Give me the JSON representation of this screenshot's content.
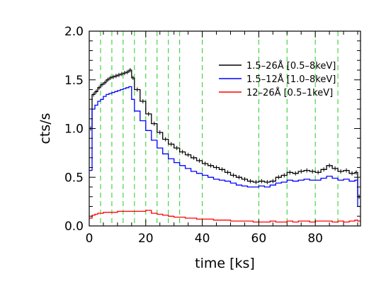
{
  "chart_data": {
    "type": "line",
    "xlabel": "time [ks]",
    "ylabel": "cts/s",
    "xlim": [
      0,
      96
    ],
    "ylim": [
      0,
      2.0
    ],
    "xticks": [
      "0",
      "20",
      "40",
      "60",
      "80"
    ],
    "xtick_values": [
      0,
      20,
      40,
      60,
      80
    ],
    "yticks": [
      "0.0",
      "0.5",
      "1.0",
      "1.5",
      "2.0"
    ],
    "ytick_values": [
      0,
      0.5,
      1.0,
      1.5,
      2.0
    ],
    "vertical_dashed_lines": [
      4,
      8,
      12,
      16,
      20,
      24,
      28,
      32,
      40,
      60,
      70,
      80,
      88
    ],
    "vertical_line_color": "#22cc22",
    "legend_position": "top-right",
    "bin_edges": [
      0,
      1,
      2,
      3,
      4,
      5,
      6,
      7,
      8,
      9,
      10,
      11,
      12,
      13,
      14,
      15,
      16,
      18,
      20,
      22,
      24,
      26,
      28,
      30,
      32,
      34,
      36,
      38,
      40,
      42,
      44,
      46,
      48,
      50,
      52,
      54,
      56,
      58,
      60,
      62,
      64,
      66,
      68,
      70,
      72,
      74,
      76,
      78,
      80,
      82,
      84,
      86,
      88,
      90,
      92,
      94,
      95,
      96
    ],
    "series": [
      {
        "name": "1.5–26Å [0.5–8keV]",
        "color": "#000000",
        "errorbars": true,
        "values": [
          1.0,
          1.35,
          1.38,
          1.42,
          1.45,
          1.47,
          1.5,
          1.52,
          1.53,
          1.54,
          1.55,
          1.56,
          1.57,
          1.58,
          1.6,
          1.52,
          1.4,
          1.28,
          1.15,
          1.05,
          0.96,
          0.89,
          0.84,
          0.8,
          0.76,
          0.73,
          0.7,
          0.67,
          0.64,
          0.62,
          0.6,
          0.58,
          0.55,
          0.52,
          0.5,
          0.48,
          0.46,
          0.45,
          0.46,
          0.45,
          0.46,
          0.5,
          0.52,
          0.55,
          0.54,
          0.56,
          0.57,
          0.56,
          0.55,
          0.58,
          0.62,
          0.59,
          0.56,
          0.57,
          0.54,
          0.55,
          0.3
        ]
      },
      {
        "name": "1.5–12Å [1.0–8keV]",
        "color": "#0000ff",
        "errorbars": false,
        "values": [
          0.57,
          1.2,
          1.24,
          1.28,
          1.3,
          1.33,
          1.35,
          1.36,
          1.37,
          1.38,
          1.39,
          1.4,
          1.41,
          1.42,
          1.43,
          1.3,
          1.18,
          1.08,
          0.98,
          0.88,
          0.8,
          0.74,
          0.69,
          0.65,
          0.62,
          0.59,
          0.56,
          0.54,
          0.52,
          0.5,
          0.48,
          0.47,
          0.46,
          0.44,
          0.42,
          0.41,
          0.4,
          0.4,
          0.41,
          0.4,
          0.42,
          0.44,
          0.45,
          0.47,
          0.46,
          0.47,
          0.48,
          0.47,
          0.47,
          0.49,
          0.51,
          0.49,
          0.47,
          0.48,
          0.46,
          0.47,
          0.2
        ]
      },
      {
        "name": "12–26Å  [0.5–1keV]",
        "color": "#ff0000",
        "errorbars": false,
        "values": [
          0.08,
          0.11,
          0.12,
          0.13,
          0.13,
          0.14,
          0.14,
          0.14,
          0.14,
          0.14,
          0.15,
          0.15,
          0.15,
          0.15,
          0.15,
          0.15,
          0.15,
          0.15,
          0.16,
          0.13,
          0.12,
          0.11,
          0.1,
          0.09,
          0.09,
          0.08,
          0.08,
          0.07,
          0.07,
          0.07,
          0.06,
          0.06,
          0.06,
          0.05,
          0.05,
          0.05,
          0.05,
          0.04,
          0.04,
          0.04,
          0.05,
          0.04,
          0.04,
          0.05,
          0.04,
          0.05,
          0.05,
          0.04,
          0.05,
          0.05,
          0.05,
          0.04,
          0.05,
          0.04,
          0.05,
          0.06,
          0.05
        ]
      }
    ]
  }
}
